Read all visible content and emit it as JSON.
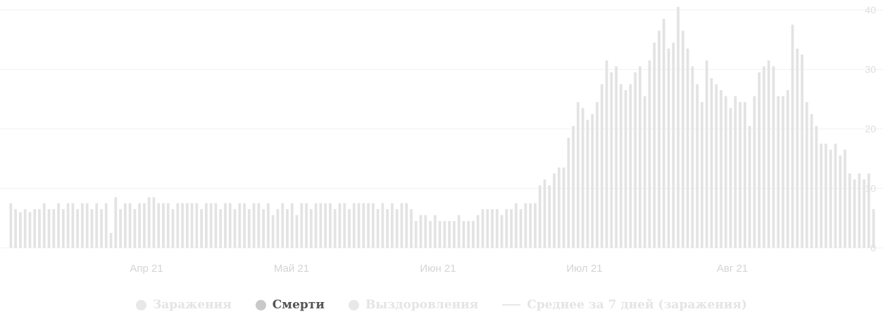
{
  "chart_data": {
    "type": "bar",
    "x_ticks": [
      "Апр 21",
      "Май 21",
      "Июн 21",
      "Июл 21",
      "Авг 21"
    ],
    "y_ticks": [
      "0",
      "10",
      "20",
      "30",
      "40"
    ],
    "ylim": [
      0,
      40
    ],
    "grid": true,
    "legend_position": "bottom",
    "bar_color": "#e3e3e3",
    "series": [
      {
        "name": "Смерти",
        "values": [
          7.5,
          6.5,
          6,
          6.5,
          6,
          6.5,
          6.5,
          7.5,
          6.5,
          6.5,
          7.5,
          6.5,
          7.5,
          7.5,
          6.5,
          7.5,
          7.5,
          6.5,
          7.5,
          6.5,
          7.5,
          2.5,
          8.5,
          6.5,
          7.5,
          7.5,
          6.5,
          7.5,
          7.5,
          8.5,
          8.5,
          7.5,
          7.5,
          7.5,
          6.5,
          7.5,
          7.5,
          7.5,
          7.5,
          7.5,
          6.5,
          7.5,
          7.5,
          7.5,
          6.5,
          7.5,
          7.5,
          6.5,
          7.5,
          7.5,
          6.5,
          7.5,
          7.5,
          6.5,
          7.5,
          5.5,
          6.5,
          7.5,
          6.5,
          7.5,
          5.5,
          7.5,
          7.5,
          6.5,
          7.5,
          7.5,
          7.5,
          7.5,
          6.5,
          7.5,
          7.5,
          6.5,
          7.5,
          7.5,
          7.5,
          7.5,
          7.5,
          6.5,
          7.5,
          6.5,
          7.5,
          6.5,
          7.5,
          7.5,
          6.5,
          4.5,
          5.5,
          5.5,
          4.5,
          5.5,
          4.5,
          4.5,
          4.5,
          4.5,
          5.5,
          4.5,
          4.5,
          4.5,
          5.5,
          6.5,
          6.5,
          6.5,
          6.5,
          5.5,
          6.5,
          6.5,
          7.5,
          6.5,
          7.5,
          7.5,
          7.5,
          10.5,
          11.5,
          10.5,
          12.5,
          13.5,
          13.5,
          18.5,
          20.5,
          24.5,
          23.5,
          21.5,
          22.5,
          24.5,
          27.5,
          31.5,
          29.5,
          30.5,
          27.5,
          26.5,
          27.5,
          29.5,
          30.5,
          25.5,
          31.5,
          34.5,
          36.5,
          38.5,
          33.5,
          34.5,
          40.5,
          36.5,
          33.5,
          30.5,
          27.5,
          24.5,
          31.5,
          28.5,
          27.5,
          26.5,
          25.5,
          23.5,
          25.5,
          24.5,
          24.5,
          20.5,
          25.5,
          29.5,
          30.5,
          31.5,
          30.5,
          25.5,
          25.5,
          26.5,
          37.5,
          33.5,
          32.5,
          24.5,
          22.5,
          20.5,
          17.5,
          17.5,
          16.5,
          17.5,
          15.5,
          16.5,
          12.5,
          11.5,
          12.5,
          11.5,
          12.5,
          6.5
        ]
      }
    ]
  },
  "legend": {
    "items": [
      {
        "label": "Заражения",
        "color": "#e8e8e8"
      },
      {
        "label": "Смерти",
        "color": "#c9c9c9"
      },
      {
        "label": "Выздоровления",
        "color": "#e8e8e8"
      },
      {
        "label": "Среднее за 7 дней (заражения)",
        "color": "#e8e8e8"
      }
    ]
  }
}
